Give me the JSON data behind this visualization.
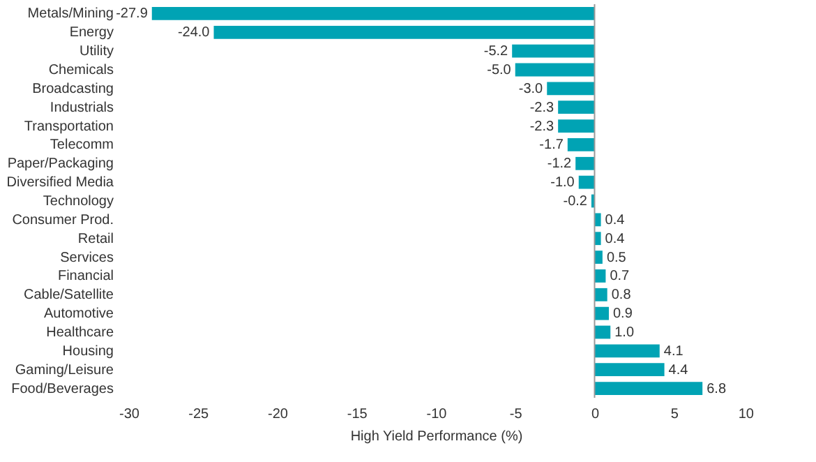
{
  "chart_data": {
    "type": "bar",
    "orientation": "horizontal",
    "xlabel": "High Yield Performance (%)",
    "categories": [
      "Metals/Mining",
      "Energy",
      "Utility",
      "Chemicals",
      "Broadcasting",
      "Industrials",
      "Transportation",
      "Telecomm",
      "Paper/Packaging",
      "Diversified Media",
      "Technology",
      "Consumer Prod.",
      "Retail",
      "Services",
      "Financial",
      "Cable/Satellite",
      "Automotive",
      "Healthcare",
      "Housing",
      "Gaming/Leisure",
      "Food/Beverages"
    ],
    "values": [
      -27.9,
      -24.0,
      -5.2,
      -5.0,
      -3.0,
      -2.3,
      -2.3,
      -1.7,
      -1.2,
      -1.0,
      -0.2,
      0.4,
      0.4,
      0.5,
      0.7,
      0.8,
      0.9,
      1.0,
      4.1,
      4.4,
      6.8
    ],
    "value_labels": [
      "-27.9",
      "-24.0",
      "-5.2",
      "-5.0",
      "-3.0",
      "-2.3",
      "-2.3",
      "-1.7",
      "-1.2",
      "-1.0",
      "-0.2",
      "0.4",
      "0.4",
      "0.5",
      "0.7",
      "0.8",
      "0.9",
      "1.0",
      "4.1",
      "4.4",
      "6.8"
    ],
    "color": "#00a3b4",
    "xlim": [
      -30,
      10
    ],
    "xticks": [
      -30,
      -25,
      -20,
      -15,
      -10,
      -5,
      0,
      5,
      10
    ],
    "ref_lines": [
      {
        "axis": "x",
        "value": 0,
        "color": "#999999"
      }
    ],
    "grid": false
  }
}
